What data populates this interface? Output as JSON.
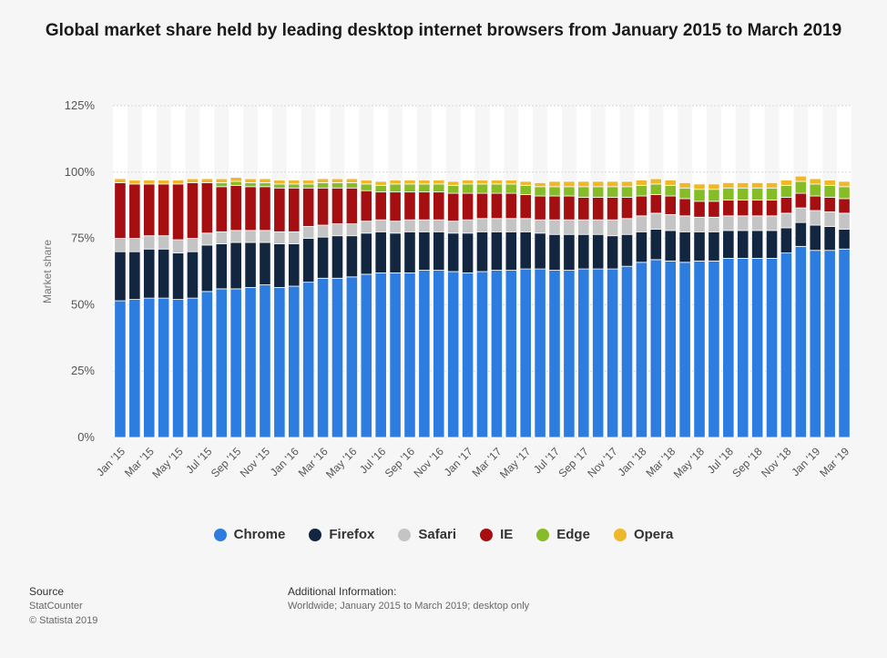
{
  "header": {
    "title": "Global market share held by leading desktop internet browsers from January 2015 to March 2019"
  },
  "chart_data": {
    "type": "bar",
    "stacked": true,
    "ylabel": "Market share",
    "ylim": [
      0,
      125
    ],
    "ytick_labels": [
      "0%",
      "25%",
      "50%",
      "75%",
      "100%",
      "125%"
    ],
    "yticks": [
      0,
      25,
      50,
      75,
      100,
      125
    ],
    "categories": [
      "Jan '15",
      "Feb '15",
      "Mar '15",
      "Apr '15",
      "May '15",
      "Jun '15",
      "Jul '15",
      "Aug '15",
      "Sep '15",
      "Oct '15",
      "Nov '15",
      "Dec '15",
      "Jan '16",
      "Feb '16",
      "Mar '16",
      "Apr '16",
      "May '16",
      "Jun '16",
      "Jul '16",
      "Aug '16",
      "Sep '16",
      "Oct '16",
      "Nov '16",
      "Dec '16",
      "Jan '17",
      "Feb '17",
      "Mar '17",
      "Apr '17",
      "May '17",
      "Jun '17",
      "Jul '17",
      "Aug '17",
      "Sep '17",
      "Oct '17",
      "Nov '17",
      "Dec '17",
      "Jan '18",
      "Feb '18",
      "Mar '18",
      "Apr '18",
      "May '18",
      "Jun '18",
      "Jul '18",
      "Aug '18",
      "Sep '18",
      "Oct '18",
      "Nov '18",
      "Dec '18",
      "Jan '19",
      "Feb '19",
      "Mar '19"
    ],
    "shown_tick_labels": [
      "Jan '15",
      "Mar '15",
      "May '15",
      "Jul '15",
      "Sep '15",
      "Nov '15",
      "Jan '16",
      "Mar '16",
      "May '16",
      "Jul '16",
      "Sep '16",
      "Nov '16",
      "Jan '17",
      "Mar '17",
      "May '17",
      "Jul '17",
      "Sep '17",
      "Nov '17",
      "Jan '18",
      "Mar '18",
      "May '18",
      "Jul '18",
      "Sep '18",
      "Nov '18",
      "Jan '19",
      "Mar '19"
    ],
    "series": [
      {
        "name": "Chrome",
        "color": "#2d7de0",
        "values": [
          51.5,
          52.0,
          52.5,
          52.5,
          52.0,
          52.5,
          55.0,
          56.0,
          56.0,
          56.5,
          57.5,
          56.5,
          57.0,
          58.5,
          60.0,
          60.0,
          60.5,
          61.5,
          62.0,
          62.0,
          62.0,
          63.0,
          63.0,
          62.5,
          62.0,
          62.5,
          63.0,
          63.0,
          63.5,
          63.5,
          63.0,
          63.0,
          63.5,
          63.5,
          63.5,
          64.5,
          66.0,
          67.0,
          66.5,
          66.0,
          66.5,
          66.5,
          67.5,
          67.5,
          67.5,
          67.5,
          69.5,
          72.0,
          70.5,
          70.5,
          71.0
        ]
      },
      {
        "name": "Firefox",
        "color": "#13263f",
        "values": [
          18.5,
          18.0,
          18.5,
          18.5,
          17.5,
          17.5,
          17.5,
          17.0,
          17.5,
          17.0,
          16.0,
          16.5,
          16.0,
          16.5,
          15.5,
          16.0,
          15.5,
          15.5,
          15.5,
          15.0,
          15.5,
          14.5,
          14.5,
          14.5,
          15.0,
          15.0,
          14.5,
          14.5,
          14.0,
          13.5,
          13.5,
          13.5,
          13.0,
          13.0,
          12.5,
          12.0,
          11.5,
          11.5,
          11.5,
          11.5,
          11.0,
          11.0,
          10.5,
          10.5,
          10.5,
          10.5,
          9.5,
          9.0,
          9.5,
          9.0,
          7.5
        ]
      },
      {
        "name": "Safari",
        "color": "#c4c4c4",
        "values": [
          5.0,
          5.0,
          5.0,
          5.0,
          5.0,
          5.0,
          4.5,
          4.5,
          4.5,
          4.5,
          4.5,
          4.5,
          4.5,
          4.5,
          4.5,
          4.5,
          4.5,
          4.5,
          4.5,
          4.5,
          4.5,
          4.5,
          4.5,
          4.5,
          5.0,
          5.0,
          5.0,
          5.0,
          5.0,
          5.0,
          5.5,
          5.5,
          5.5,
          5.5,
          6.0,
          6.0,
          6.0,
          6.0,
          6.0,
          6.0,
          5.5,
          5.5,
          5.5,
          5.5,
          5.5,
          5.5,
          5.5,
          5.5,
          5.5,
          5.5,
          6.0
        ]
      },
      {
        "name": "IE",
        "color": "#a50f12",
        "values": [
          21.0,
          20.5,
          19.5,
          19.5,
          21.0,
          21.0,
          19.0,
          17.0,
          17.0,
          16.5,
          16.5,
          16.5,
          16.5,
          14.5,
          14.0,
          13.5,
          13.5,
          11.5,
          10.5,
          11.0,
          10.5,
          10.5,
          10.5,
          10.5,
          10.0,
          9.5,
          9.5,
          9.5,
          9.0,
          9.0,
          9.0,
          9.0,
          8.5,
          8.5,
          8.5,
          8.0,
          7.5,
          7.0,
          7.0,
          6.5,
          6.0,
          6.0,
          6.0,
          6.0,
          6.0,
          6.0,
          6.0,
          5.5,
          5.5,
          5.5,
          5.5
        ]
      },
      {
        "name": "Edge",
        "color": "#86bc25",
        "values": [
          0.0,
          0.0,
          0.0,
          0.0,
          0.0,
          0.0,
          0.0,
          1.5,
          1.5,
          1.5,
          1.5,
          1.5,
          1.5,
          1.5,
          2.0,
          2.0,
          2.0,
          2.5,
          2.5,
          3.0,
          3.0,
          3.0,
          3.0,
          3.0,
          3.5,
          3.5,
          3.5,
          3.5,
          3.5,
          3.5,
          3.5,
          3.5,
          4.0,
          4.0,
          4.0,
          4.0,
          4.0,
          4.0,
          4.0,
          4.0,
          4.5,
          4.5,
          4.5,
          4.5,
          4.5,
          4.5,
          4.5,
          4.5,
          4.5,
          4.5,
          4.5
        ]
      },
      {
        "name": "Opera",
        "color": "#efb72a",
        "values": [
          1.5,
          1.5,
          1.5,
          1.5,
          1.5,
          1.5,
          1.5,
          1.5,
          1.5,
          1.5,
          1.5,
          1.5,
          1.5,
          1.5,
          1.5,
          1.5,
          1.5,
          1.5,
          1.5,
          1.5,
          1.5,
          1.5,
          1.5,
          1.5,
          1.5,
          1.5,
          1.5,
          1.5,
          1.5,
          1.5,
          2.0,
          2.0,
          2.0,
          2.0,
          2.0,
          2.0,
          2.0,
          2.0,
          2.0,
          2.0,
          2.0,
          2.0,
          2.0,
          2.0,
          2.0,
          2.0,
          2.0,
          2.0,
          2.0,
          2.0,
          2.0
        ]
      }
    ],
    "legend_position": "bottom",
    "grid": true
  },
  "footer": {
    "source_heading": "Source",
    "source_lines": [
      "StatCounter",
      "© Statista 2019"
    ],
    "additional_heading": "Additional Information:",
    "additional_text": "Worldwide; January 2015 to March 2019; desktop only"
  }
}
